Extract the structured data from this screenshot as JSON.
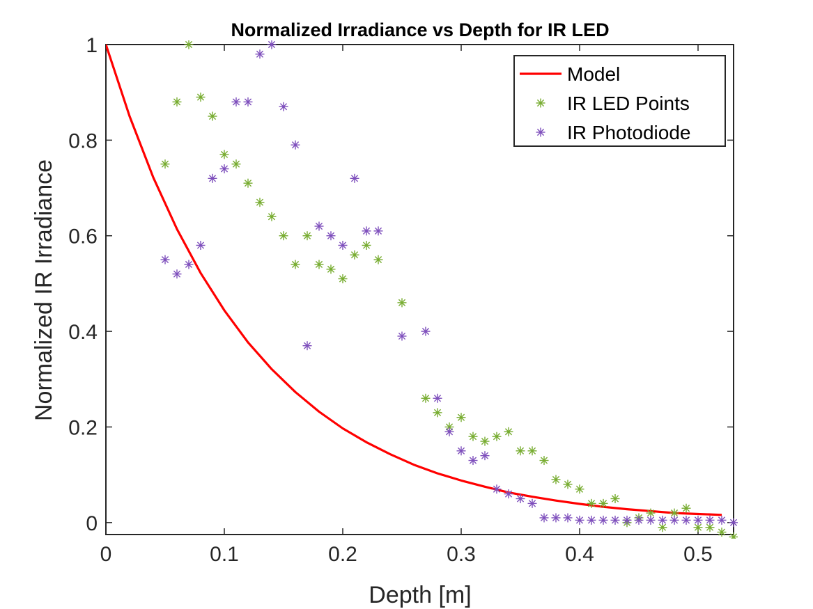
{
  "chart_data": {
    "type": "line",
    "title": "Normalized Irradiance vs Depth for IR LED",
    "xlabel": "Depth [m]",
    "ylabel": "Normalized IR Irradiance",
    "xlim": [
      0,
      0.53
    ],
    "ylim": [
      -0.025,
      1
    ],
    "xticks": [
      0,
      0.1,
      0.2,
      0.3,
      0.4,
      0.5
    ],
    "xtick_labels": [
      "0",
      "0.1",
      "0.2",
      "0.3",
      "0.4",
      "0.5"
    ],
    "yticks": [
      0,
      0.2,
      0.4,
      0.6,
      0.8,
      1
    ],
    "ytick_labels": [
      "0",
      "0.2",
      "0.4",
      "0.6",
      "0.8",
      "1"
    ],
    "grid": false,
    "legend_position": "top-right",
    "series": [
      {
        "name": "Model",
        "style": "line",
        "color": "#ff0000",
        "x": [
          0,
          0.02,
          0.04,
          0.06,
          0.08,
          0.1,
          0.12,
          0.14,
          0.16,
          0.18,
          0.2,
          0.22,
          0.24,
          0.26,
          0.28,
          0.3,
          0.32,
          0.34,
          0.36,
          0.38,
          0.4,
          0.42,
          0.44,
          0.46,
          0.48,
          0.5,
          0.52
        ],
        "y": [
          1.0,
          0.85,
          0.722,
          0.614,
          0.522,
          0.444,
          0.377,
          0.321,
          0.273,
          0.232,
          0.197,
          0.168,
          0.143,
          0.121,
          0.103,
          0.088,
          0.075,
          0.063,
          0.054,
          0.046,
          0.039,
          0.033,
          0.028,
          0.024,
          0.02,
          0.018,
          0.016
        ]
      },
      {
        "name": "IR LED Points",
        "style": "markers",
        "marker": "*",
        "color": "#77ac30",
        "x": [
          0.05,
          0.06,
          0.07,
          0.08,
          0.09,
          0.1,
          0.11,
          0.12,
          0.13,
          0.14,
          0.15,
          0.16,
          0.17,
          0.18,
          0.19,
          0.2,
          0.21,
          0.22,
          0.23,
          0.25,
          0.27,
          0.28,
          0.29,
          0.3,
          0.31,
          0.32,
          0.33,
          0.34,
          0.35,
          0.36,
          0.37,
          0.38,
          0.39,
          0.4,
          0.41,
          0.42,
          0.43,
          0.44,
          0.45,
          0.46,
          0.47,
          0.48,
          0.49,
          0.5,
          0.51,
          0.52,
          0.53
        ],
        "y": [
          0.75,
          0.88,
          1.0,
          0.89,
          0.85,
          0.77,
          0.75,
          0.71,
          0.67,
          0.64,
          0.6,
          0.54,
          0.6,
          0.54,
          0.53,
          0.51,
          0.56,
          0.58,
          0.55,
          0.46,
          0.26,
          0.23,
          0.2,
          0.22,
          0.18,
          0.17,
          0.18,
          0.19,
          0.15,
          0.15,
          0.13,
          0.09,
          0.08,
          0.07,
          0.04,
          0.04,
          0.05,
          0.0,
          0.01,
          0.02,
          -0.01,
          0.02,
          0.03,
          -0.01,
          -0.01,
          -0.02,
          -0.03
        ]
      },
      {
        "name": "IR Photodiode",
        "style": "markers",
        "marker": "*",
        "color": "#7e4fbc",
        "x": [
          0.05,
          0.06,
          0.07,
          0.08,
          0.09,
          0.1,
          0.11,
          0.12,
          0.13,
          0.14,
          0.15,
          0.16,
          0.17,
          0.18,
          0.19,
          0.2,
          0.21,
          0.22,
          0.23,
          0.25,
          0.27,
          0.28,
          0.29,
          0.3,
          0.31,
          0.32,
          0.33,
          0.34,
          0.35,
          0.36,
          0.37,
          0.38,
          0.39,
          0.4,
          0.41,
          0.42,
          0.43,
          0.44,
          0.45,
          0.46,
          0.47,
          0.48,
          0.49,
          0.5,
          0.51,
          0.52,
          0.53
        ],
        "y": [
          0.55,
          0.52,
          0.54,
          0.58,
          0.72,
          0.74,
          0.88,
          0.88,
          0.98,
          1.0,
          0.87,
          0.79,
          0.37,
          0.62,
          0.6,
          0.58,
          0.72,
          0.61,
          0.61,
          0.39,
          0.4,
          0.26,
          0.19,
          0.15,
          0.13,
          0.14,
          0.07,
          0.06,
          0.05,
          0.04,
          0.01,
          0.01,
          0.01,
          0.005,
          0.005,
          0.005,
          0.005,
          0.005,
          0.005,
          0.005,
          0.005,
          0.005,
          0.005,
          0.005,
          0.005,
          0.005,
          0.0
        ]
      }
    ]
  }
}
